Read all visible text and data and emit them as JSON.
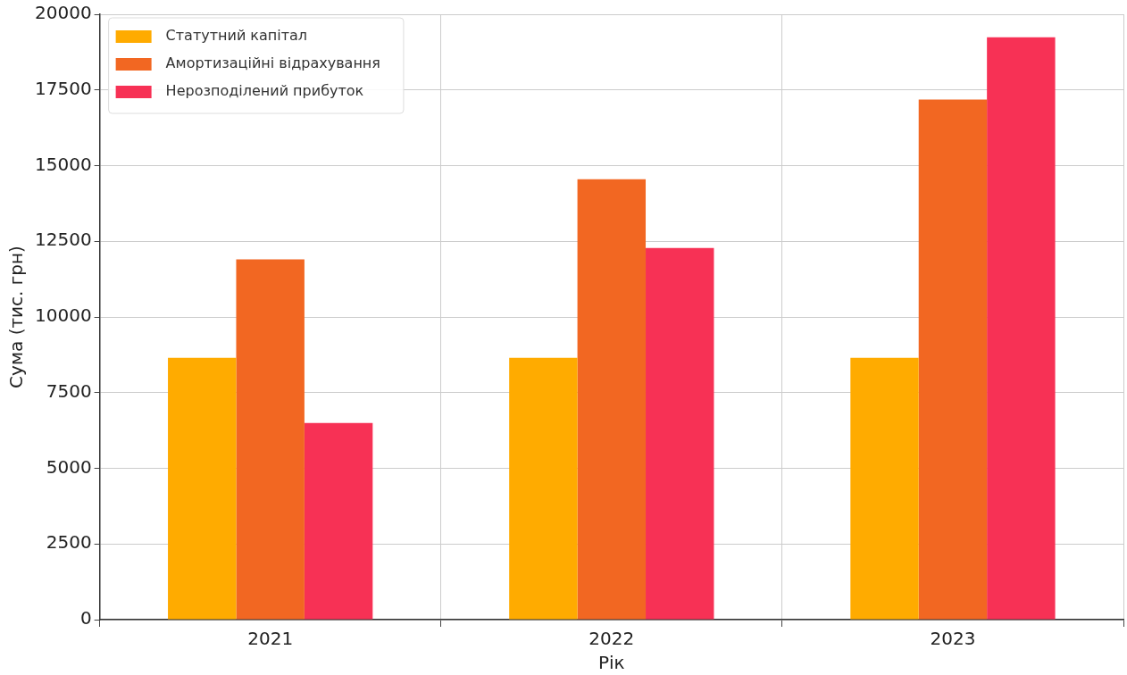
{
  "chart_data": {
    "type": "bar",
    "xlabel": "Рік",
    "ylabel": "Сума (тис. грн)",
    "categories": [
      "2021",
      "2022",
      "2023"
    ],
    "series": [
      {
        "name": "Статутний капітал",
        "color": "#ffab00",
        "values": [
          8650,
          8650,
          8650
        ]
      },
      {
        "name": "Амортизаційні відрахування",
        "color": "#f26722",
        "values": [
          11900,
          14550,
          17180
        ]
      },
      {
        "name": "Нерозподілений прибуток",
        "color": "#f73155",
        "values": [
          6500,
          12280,
          19240
        ]
      }
    ],
    "ylim": [
      0,
      20000
    ],
    "yticks": [
      0,
      2500,
      5000,
      7500,
      10000,
      12500,
      15000,
      17500,
      20000
    ],
    "grid": true,
    "legend": "top left"
  }
}
